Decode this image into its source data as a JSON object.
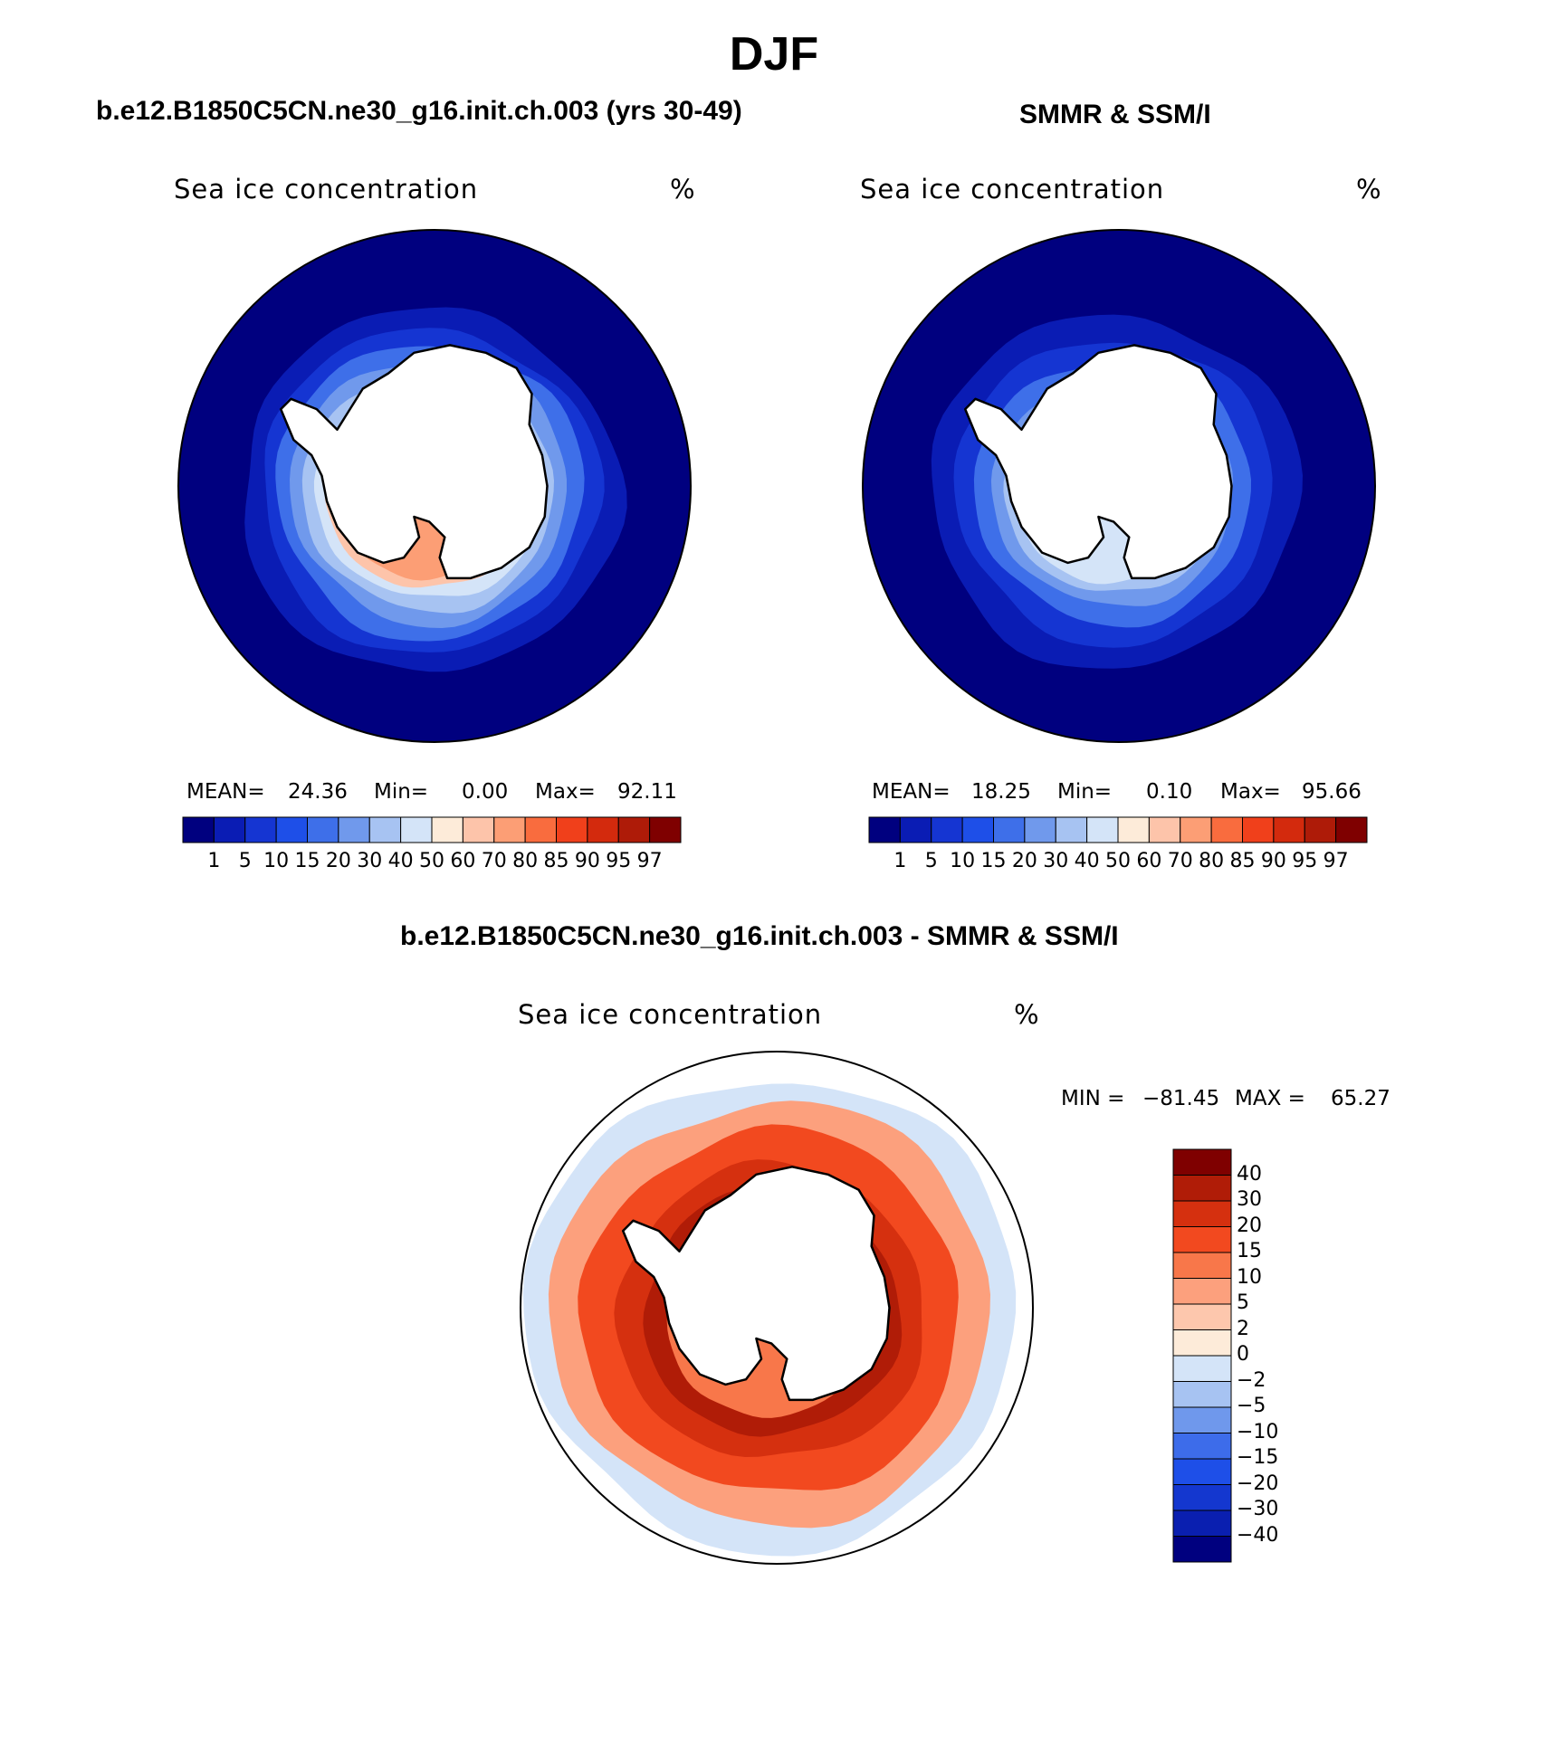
{
  "title": "DJF",
  "panels": [
    {
      "title": "b.e12.B1850C5CN.ne30_g16.init.ch.003 (yrs 30-49)",
      "field_label": "Sea ice concentration",
      "units": "%",
      "stats": {
        "mean_label": "MEAN=",
        "mean": "24.36",
        "min_label": "Min=",
        "min": "0.00",
        "max_label": "Max=",
        "max": "92.11"
      }
    },
    {
      "title": "SMMR & SSM/I",
      "field_label": "Sea ice concentration",
      "units": "%",
      "stats": {
        "mean_label": "MEAN=",
        "mean": "18.25",
        "min_label": "Min=",
        "min": "0.10",
        "max_label": "Max=",
        "max": "95.66"
      }
    },
    {
      "title": "b.e12.B1850C5CN.ne30_g16.init.ch.003 - SMMR & SSM/I",
      "field_label": "Sea ice concentration",
      "units": "%",
      "stats": {
        "min_label": "MIN =",
        "min": "−81.45",
        "max_label": "MAX =",
        "max": "65.27"
      }
    }
  ],
  "colorbar_conc": {
    "ticks": [
      "1",
      "5",
      "10",
      "15",
      "20",
      "30",
      "40",
      "50",
      "60",
      "70",
      "80",
      "85",
      "90",
      "95",
      "97"
    ],
    "colors": [
      "#00007f",
      "#0a1cb4",
      "#1535d2",
      "#1e4fe8",
      "#3e6fe9",
      "#7099ec",
      "#a7c3f2",
      "#d4e4f8",
      "#fdebd9",
      "#fdc4aa",
      "#fc9e75",
      "#f96c3e",
      "#f0401b",
      "#d32a0d",
      "#ae1b08",
      "#7f0000"
    ]
  },
  "colorbar_diff": {
    "ticks": [
      "40",
      "30",
      "20",
      "15",
      "10",
      "5",
      "2",
      "0",
      "−2",
      "−5",
      "−10",
      "−15",
      "−20",
      "−30",
      "−40"
    ],
    "colors": [
      "#7f0000",
      "#b01c07",
      "#d5300f",
      "#f2491f",
      "#f8774a",
      "#fca07d",
      "#fdc7ad",
      "#fdebd9",
      "#d4e4f8",
      "#a7c3f2",
      "#6f98ec",
      "#3d6cea",
      "#1e4fe8",
      "#1437cf",
      "#0a1fb0",
      "#00007f"
    ]
  },
  "maps": [
    {
      "rings": [
        {
          "r": 1.0,
          "color": "#00007f"
        },
        {
          "r": 0.74,
          "color": "#0a1cb4"
        },
        {
          "r": 0.66,
          "color": "#1535d2"
        },
        {
          "r": 0.6,
          "color": "#3e6fe9"
        },
        {
          "r": 0.54,
          "color": "#7099ec"
        },
        {
          "r": 0.49,
          "color": "#a7c3f2"
        },
        {
          "r": 0.44,
          "color": "#d4e4f8"
        },
        {
          "r": 0.4,
          "color": "#fdc4aa"
        },
        {
          "r": 0.36,
          "color": "#fc9e75"
        }
      ]
    },
    {
      "rings": [
        {
          "r": 1.0,
          "color": "#00007f"
        },
        {
          "r": 0.72,
          "color": "#0a1cb4"
        },
        {
          "r": 0.62,
          "color": "#1535d2"
        },
        {
          "r": 0.54,
          "color": "#3e6fe9"
        },
        {
          "r": 0.47,
          "color": "#7099ec"
        },
        {
          "r": 0.42,
          "color": "#a7c3f2"
        },
        {
          "r": 0.38,
          "color": "#d4e4f8"
        }
      ]
    },
    {
      "rings": [
        {
          "r": 1.0,
          "color": "#ffffff"
        },
        {
          "r": 0.96,
          "color": "#d4e4f8"
        },
        {
          "r": 0.86,
          "color": "#fca07d"
        },
        {
          "r": 0.74,
          "color": "#f2491f"
        },
        {
          "r": 0.6,
          "color": "#d5300f"
        },
        {
          "r": 0.5,
          "color": "#b01c07"
        },
        {
          "r": 0.42,
          "color": "#f8774a"
        }
      ]
    }
  ]
}
